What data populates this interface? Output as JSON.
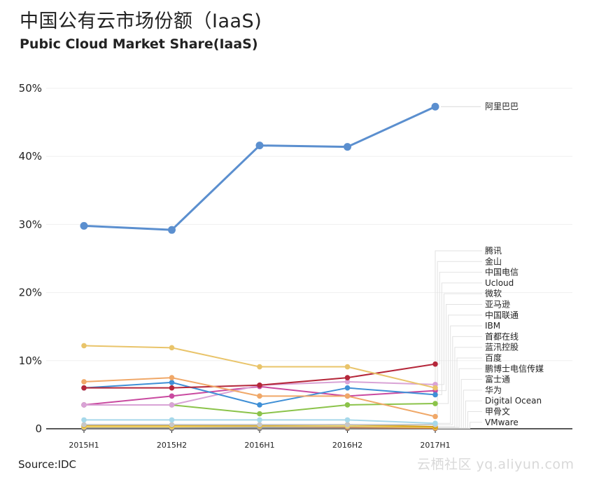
{
  "title": "中国公有云市场份额（IaaS)",
  "subtitle": "Pubic Cloud Market Share(IaaS)",
  "source": "Source:IDC",
  "watermark": "云栖社区 yq.aliyun.com",
  "chart_data": {
    "type": "line",
    "x": [
      "2015H1",
      "2015H2",
      "2016H1",
      "2016H2",
      "2017H1"
    ],
    "ylim": [
      0,
      50
    ],
    "yticks": [
      0,
      10,
      20,
      30,
      40,
      50
    ],
    "ytick_labels": [
      "0",
      "10%",
      "20%",
      "30%",
      "40%",
      "50%"
    ],
    "grid": true,
    "legend": "right, labels at line ends",
    "series": [
      {
        "name": "阿里巴巴",
        "color": "#5b8fcf",
        "values": [
          29.8,
          29.2,
          41.6,
          41.4,
          47.3
        ]
      },
      {
        "name": "腾讯",
        "color": "#e9c46a",
        "values": [
          12.2,
          11.9,
          9.1,
          9.1,
          6.0
        ]
      },
      {
        "name": "金山",
        "color": "#f0a868",
        "values": [
          6.9,
          7.5,
          4.8,
          4.8,
          1.8
        ]
      },
      {
        "name": "中国电信",
        "color": "#b5273a",
        "values": [
          6.0,
          6.0,
          6.4,
          7.5,
          9.5
        ]
      },
      {
        "name": "Ucloud",
        "color": "#3f8fd6",
        "values": [
          6.0,
          6.8,
          3.5,
          6.0,
          5.0
        ]
      },
      {
        "name": "微软",
        "color": "#d9a3d6",
        "values": [
          3.5,
          3.5,
          6.4,
          6.9,
          6.5
        ]
      },
      {
        "name": "亚马逊",
        "color": "#c94aa0",
        "values": [
          3.5,
          4.8,
          6.2,
          4.8,
          5.6
        ]
      },
      {
        "name": "中国联通",
        "color": "#8bc34a",
        "values": [
          3.5,
          3.5,
          2.2,
          3.5,
          3.7
        ]
      },
      {
        "name": "IBM",
        "color": "#a6d8ea",
        "values": [
          1.3,
          1.3,
          1.3,
          1.3,
          0.8
        ]
      },
      {
        "name": "首都在线",
        "color": "#c7c7c7",
        "values": [
          0.6,
          0.6,
          0.6,
          0.6,
          0.6
        ]
      },
      {
        "name": "蓝汛控股",
        "color": "#d4a017",
        "values": [
          0.5,
          0.5,
          0.5,
          0.6,
          0.3
        ]
      },
      {
        "name": "百度",
        "color": "#f4d35e",
        "values": [
          0.3,
          0.3,
          0.4,
          0.4,
          0.2
        ]
      },
      {
        "name": "鹏博士电信传媒",
        "color": "#9e9e9e",
        "values": [
          0.2,
          0.2,
          0.2,
          0.3,
          0.2
        ]
      },
      {
        "name": "富士通",
        "color": "#e07b39",
        "values": [
          0.2,
          0.2,
          0.2,
          0.2,
          0.1
        ]
      },
      {
        "name": "华为",
        "color": "#7f7f7f",
        "values": [
          0.1,
          0.1,
          0.1,
          0.2,
          0.1
        ]
      },
      {
        "name": "Digital Ocean",
        "color": "#888888",
        "values": [
          0.1,
          0.1,
          0.1,
          0.1,
          0.1
        ]
      },
      {
        "name": "甲骨文",
        "color": "#aaaaaa",
        "values": [
          0.1,
          0.1,
          0.1,
          0.1,
          0.1
        ]
      },
      {
        "name": "VMware",
        "color": "#555555",
        "values": [
          0.05,
          0.05,
          0.05,
          0.05,
          0.05
        ]
      }
    ]
  }
}
